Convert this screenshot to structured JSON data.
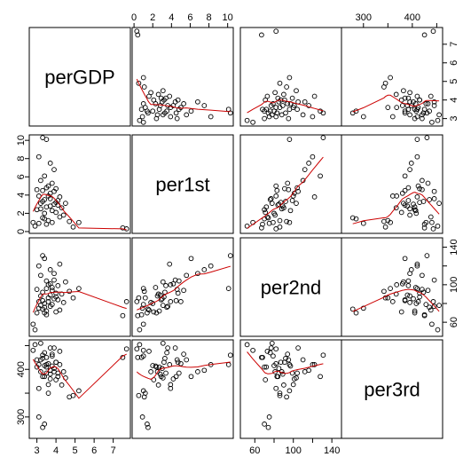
{
  "chart_data": {
    "type": "scatter",
    "kind": "scatterplot-matrix",
    "variables": [
      "perGDP",
      "per1st",
      "per2nd",
      "per3rd"
    ],
    "ranges": {
      "perGDP": [
        2.6,
        7.9
      ],
      "per1st": [
        -0.2,
        10.6
      ],
      "per2nd": [
        45,
        150
      ],
      "per3rd": [
        255,
        462
      ]
    },
    "ticks": {
      "perGDP": [
        3,
        4,
        5,
        6,
        7
      ],
      "per1st": [
        0,
        2,
        4,
        6,
        8,
        10
      ],
      "per2nd": [
        60,
        80,
        100,
        120,
        140
      ],
      "per3rd": [
        300,
        350,
        400,
        450
      ]
    },
    "tick_labels": {
      "perGDP": [
        "3",
        "4",
        "5",
        "6",
        "7"
      ],
      "per1st": [
        "0",
        "2",
        "4",
        "6",
        "8",
        "10"
      ],
      "per2nd": [
        "60",
        "",
        "100",
        "",
        "140"
      ],
      "per3rd": [
        "300",
        "",
        "400",
        ""
      ]
    },
    "points": {
      "perGDP": [
        2.8,
        2.9,
        3.0,
        3.0,
        3.1,
        3.1,
        3.1,
        3.2,
        3.2,
        3.2,
        3.3,
        3.3,
        3.3,
        3.3,
        3.4,
        3.4,
        3.4,
        3.4,
        3.5,
        3.5,
        3.5,
        3.5,
        3.6,
        3.6,
        3.6,
        3.7,
        3.7,
        3.7,
        3.7,
        3.8,
        3.8,
        3.8,
        3.9,
        3.9,
        3.9,
        4.0,
        4.0,
        4.0,
        4.1,
        4.1,
        4.2,
        4.2,
        4.3,
        4.4,
        4.5,
        4.7,
        4.9,
        5.2,
        7.5,
        7.7
      ],
      "per1st": [
        1.0,
        0.6,
        2.4,
        4.6,
        3.9,
        0.9,
        8.2,
        2.5,
        3.1,
        5.6,
        1.5,
        3.3,
        10.3,
        4.5,
        1.4,
        6.1,
        3.5,
        2.0,
        10.1,
        4.8,
        2.7,
        0.8,
        3.9,
        5.0,
        1.2,
        7.5,
        2.8,
        3.6,
        4.2,
        1.0,
        5.3,
        2.3,
        3.0,
        4.4,
        6.8,
        3.2,
        2.1,
        4.7,
        3.4,
        2.9,
        3.8,
        1.6,
        2.6,
        1.8,
        3.1,
        1.1,
        0.5,
        1.0,
        0.4,
        0.3
      ],
      "per2nd": [
        58,
        52,
        70,
        95,
        82,
        75,
        120,
        88,
        78,
        110,
        74,
        92,
        131,
        83,
        70,
        128,
        76,
        80,
        96,
        104,
        72,
        68,
        100,
        82,
        86,
        116,
        89,
        77,
        101,
        79,
        94,
        97,
        85,
        105,
        112,
        87,
        71,
        91,
        99,
        84,
        122,
        73,
        90,
        81,
        103,
        93,
        86,
        96,
        67,
        82
      ],
      "per3rd": [
        440,
        452,
        405,
        420,
        360,
        300,
        410,
        395,
        455,
        420,
        278,
        423,
        430,
        385,
        285,
        385,
        435,
        408,
        410,
        392,
        405,
        425,
        368,
        412,
        350,
        398,
        390,
        445,
        380,
        428,
        432,
        407,
        402,
        445,
        395,
        415,
        378,
        415,
        392,
        385,
        410,
        438,
        367,
        395,
        382,
        342,
        345,
        355,
        425,
        443
      ]
    }
  }
}
